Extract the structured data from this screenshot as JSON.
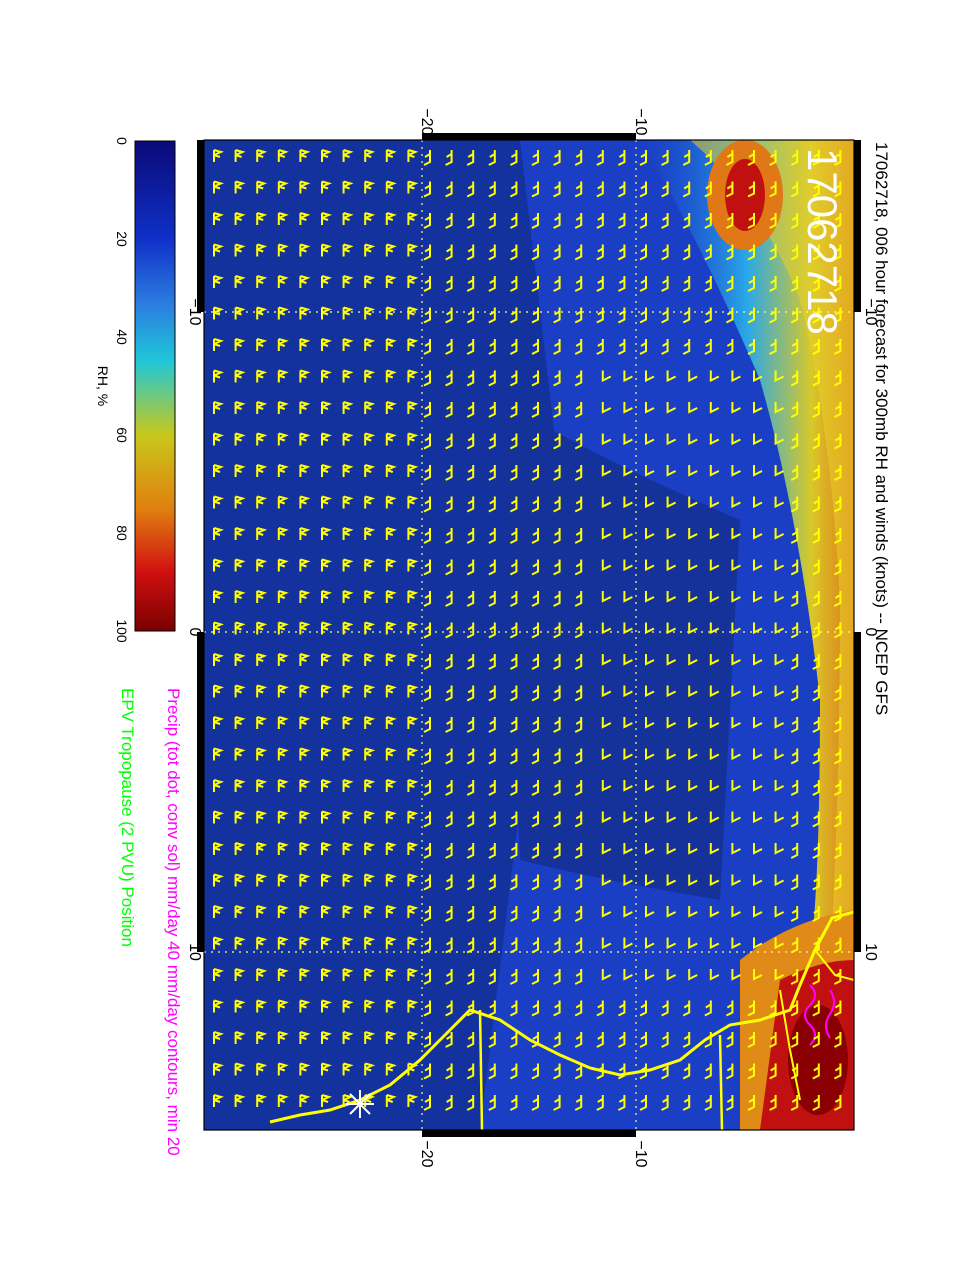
{
  "title": "17062718, 006 hour forecast for 300mb RH and winds (knots) -- NCEP GFS",
  "stamp": "17062718",
  "legend": {
    "precip": "Precip (tot dot, conv sol) mm/day 40 mm/day contours, min 20",
    "tropopause": "EPV Tropopause (2 PVU) Position",
    "precip_color": "#ff00ff",
    "tropopause_color": "#00ff00"
  },
  "colorbar": {
    "label": "RH, %",
    "ticks": [
      "0",
      "20",
      "40",
      "60",
      "80",
      "100"
    ],
    "range": [
      0,
      100
    ],
    "colors": [
      "#0a0a78",
      "#1030c8",
      "#2b7be0",
      "#20c8d8",
      "#c8c81a",
      "#e08010",
      "#d01010",
      "#7a0000"
    ]
  },
  "axes": {
    "top_ticks": [
      "−20",
      "−10"
    ],
    "bottom_ticks": [
      "−20",
      "−10"
    ],
    "left_ticks": [
      "−10",
      "0",
      "10"
    ],
    "right_ticks": [
      "−10",
      "0",
      "10"
    ]
  },
  "map": {
    "wind_barb_color": "#ffff00",
    "coastline_color": "#ffff00",
    "grid_color": "#ffff80"
  }
}
